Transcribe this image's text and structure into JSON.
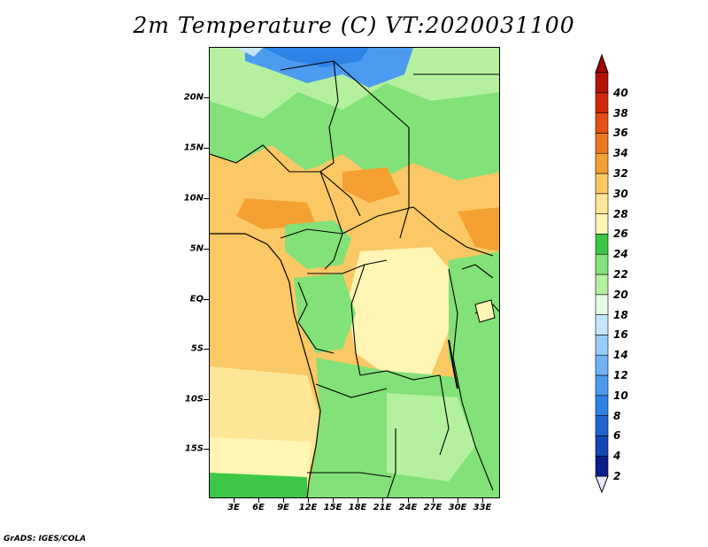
{
  "title": "2m Temperature (C) VT:2020031100",
  "credit": "GrADS: IGES/COLA",
  "map": {
    "lat_labels": [
      "20N",
      "15N",
      "10N",
      "5N",
      "EQ",
      "5S",
      "10S",
      "15S"
    ],
    "lon_labels": [
      "3E",
      "6E",
      "9E",
      "12E",
      "15E",
      "18E",
      "21E",
      "24E",
      "27E",
      "30E",
      "33E"
    ]
  },
  "colorbar": {
    "labels": [
      "2",
      "4",
      "6",
      "8",
      "10",
      "12",
      "14",
      "16",
      "18",
      "20",
      "22",
      "24",
      "26",
      "28",
      "30",
      "32",
      "34",
      "36",
      "38",
      "40"
    ],
    "colors": [
      "#0a1f8c",
      "#1446b4",
      "#1e64d2",
      "#2d82e6",
      "#4b9bf0",
      "#6eb4f5",
      "#96cdfa",
      "#c3e6fd",
      "#e6fae6",
      "#b4f0a0",
      "#82e178",
      "#3cc846",
      "#fff5b4",
      "#ffe696",
      "#fac864",
      "#f5a032",
      "#f07823",
      "#e65014",
      "#d2280a",
      "#b41405"
    ],
    "under_color": "#e6e6fa",
    "over_color": "#a00000"
  }
}
